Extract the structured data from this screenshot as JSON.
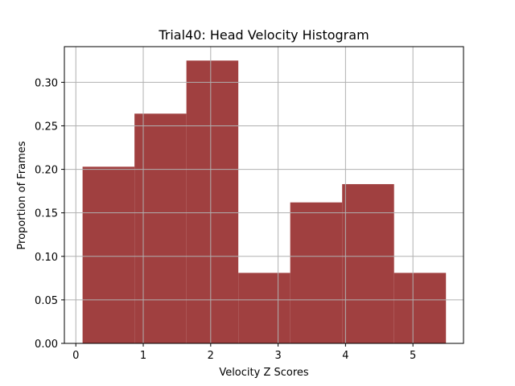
{
  "chart_data": {
    "type": "bar",
    "title": "Trial40: Head Velocity Histogram",
    "xlabel": "Velocity Z Scores",
    "ylabel": "Proportion of Frames",
    "xlim": [
      -0.17,
      5.75
    ],
    "ylim": [
      0.0,
      0.341
    ],
    "xticks": [
      0,
      1,
      2,
      3,
      4,
      5
    ],
    "yticks": [
      0.0,
      0.05,
      0.1,
      0.15,
      0.2,
      0.25,
      0.3
    ],
    "ytick_labels": [
      "0.00",
      "0.05",
      "0.10",
      "0.15",
      "0.20",
      "0.25",
      "0.30"
    ],
    "bins": [
      {
        "x0": 0.1,
        "x1": 0.87,
        "value": 0.203
      },
      {
        "x0": 0.87,
        "x1": 1.64,
        "value": 0.264
      },
      {
        "x0": 1.64,
        "x1": 2.41,
        "value": 0.325
      },
      {
        "x0": 2.41,
        "x1": 3.18,
        "value": 0.081
      },
      {
        "x0": 3.18,
        "x1": 3.95,
        "value": 0.162
      },
      {
        "x0": 3.95,
        "x1": 4.72,
        "value": 0.183
      },
      {
        "x0": 4.72,
        "x1": 5.49,
        "value": 0.081
      }
    ],
    "bar_color": "#a04040",
    "grid": true,
    "grid_color": "#b0b0b0",
    "legend": "none"
  }
}
